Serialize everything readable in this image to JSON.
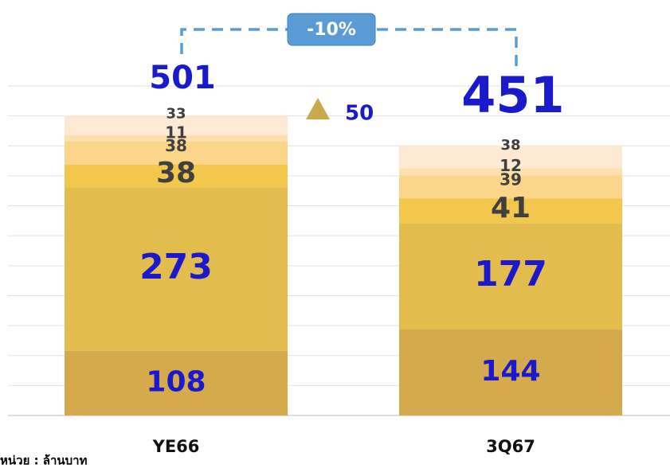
{
  "chart_data": {
    "type": "stacked_bar",
    "categories": [
      "YE66",
      "3Q67"
    ],
    "series": [
      {
        "color": "#d4aa4c",
        "values": [
          108,
          144
        ]
      },
      {
        "color": "#e3bc4e",
        "values": [
          273,
          177
        ]
      },
      {
        "color": "#f3c64c",
        "values": [
          38,
          41
        ]
      },
      {
        "color": "#fbd68a",
        "values": [
          38,
          39
        ]
      },
      {
        "color": "#fde0ae",
        "values": [
          11,
          12
        ]
      },
      {
        "color": "#fde9d4",
        "values": [
          33,
          38
        ]
      }
    ],
    "totals": [
      501,
      451
    ],
    "change_label": "-10%",
    "difference": 50,
    "ylim": [
      0,
      550
    ],
    "yticks": [
      0,
      50,
      100,
      150,
      200,
      250,
      300,
      350,
      400,
      450,
      500,
      550
    ],
    "grid": true,
    "unit_note": "หน่วย : ล้านบาท"
  }
}
